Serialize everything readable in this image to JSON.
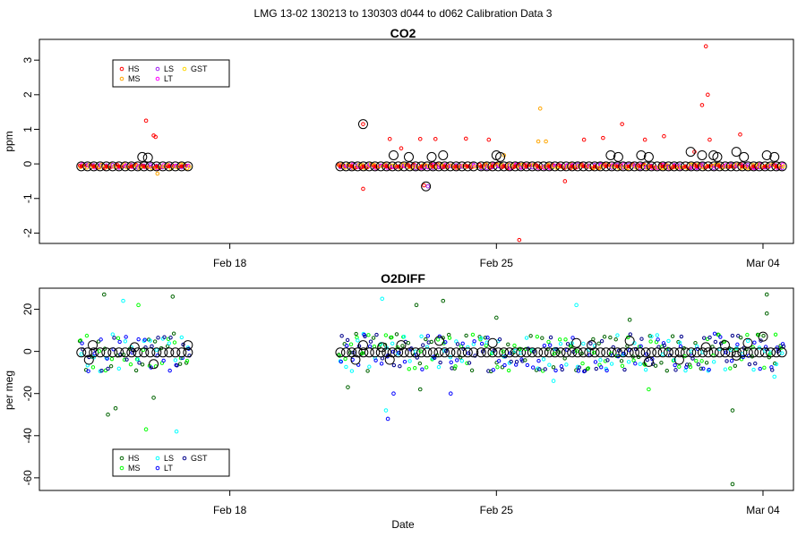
{
  "suptitle": "LMG   13-02    130213 to 130303    d044 to d062   Calibration Data 3",
  "chart_data": [
    {
      "type": "scatter",
      "title": "CO2",
      "ylabel": "ppm",
      "xlabel": "",
      "xlim": [
        44.0,
        63.8
      ],
      "ylim": [
        -2.3,
        3.6
      ],
      "yticks": [
        -2,
        -1,
        0,
        1,
        2,
        3
      ],
      "xticks": [
        {
          "x": 49,
          "label": "Feb 18"
        },
        {
          "x": 56,
          "label": "Feb 25"
        },
        {
          "x": 63,
          "label": "Mar 04"
        }
      ],
      "legend": {
        "position": "top-left",
        "entries": [
          {
            "label": "HS",
            "color": "#ff0000"
          },
          {
            "label": "MS",
            "color": "#ffa500"
          },
          {
            "label": "LS",
            "color": "#a020f0"
          },
          {
            "label": "LT",
            "color": "#ff00ff"
          },
          {
            "label": "GST",
            "color": "#ffd700"
          }
        ]
      },
      "segments": [
        {
          "start": 45.1,
          "end": 47.9,
          "n": 18
        },
        {
          "start": 51.9,
          "end": 55.4,
          "n": 24
        },
        {
          "start": 55.6,
          "end": 63.5,
          "n": 54
        }
      ],
      "baseline": -0.07,
      "series_colors": [
        "#ff0000",
        "#ffa500",
        "#a020f0",
        "#ff00ff",
        "#ffd700"
      ],
      "outliers": [
        {
          "x": 46.8,
          "y": 1.25,
          "color": "#ff0000"
        },
        {
          "x": 47.0,
          "y": 0.82,
          "color": "#ff0000"
        },
        {
          "x": 47.05,
          "y": 0.78,
          "color": "#ff0000"
        },
        {
          "x": 47.1,
          "y": -0.28,
          "color": "#ffa500"
        },
        {
          "x": 52.5,
          "y": 1.15,
          "color": "#ff0000"
        },
        {
          "x": 52.5,
          "y": -0.72,
          "color": "#ff0000"
        },
        {
          "x": 53.2,
          "y": 0.72,
          "color": "#ff0000"
        },
        {
          "x": 53.5,
          "y": 0.45,
          "color": "#ff0000"
        },
        {
          "x": 54.0,
          "y": 0.72,
          "color": "#ff0000"
        },
        {
          "x": 54.1,
          "y": -0.62,
          "color": "#ff0000"
        },
        {
          "x": 54.2,
          "y": -0.65,
          "color": "#a020f0"
        },
        {
          "x": 54.4,
          "y": 0.72,
          "color": "#ff0000"
        },
        {
          "x": 55.2,
          "y": 0.73,
          "color": "#ff0000"
        },
        {
          "x": 55.8,
          "y": 0.7,
          "color": "#ff0000"
        },
        {
          "x": 56.2,
          "y": 0.25,
          "color": "#ffa500"
        },
        {
          "x": 56.6,
          "y": -2.2,
          "color": "#ff0000"
        },
        {
          "x": 57.1,
          "y": 0.65,
          "color": "#ffa500"
        },
        {
          "x": 57.15,
          "y": 1.6,
          "color": "#ffa500"
        },
        {
          "x": 57.3,
          "y": 0.65,
          "color": "#ffa500"
        },
        {
          "x": 57.8,
          "y": -0.5,
          "color": "#ff0000"
        },
        {
          "x": 58.3,
          "y": 0.7,
          "color": "#ff0000"
        },
        {
          "x": 58.8,
          "y": 0.75,
          "color": "#ff0000"
        },
        {
          "x": 59.3,
          "y": 1.15,
          "color": "#ff0000"
        },
        {
          "x": 59.9,
          "y": 0.7,
          "color": "#ff0000"
        },
        {
          "x": 60.4,
          "y": 0.8,
          "color": "#ff0000"
        },
        {
          "x": 61.2,
          "y": 0.35,
          "color": "#ff0000"
        },
        {
          "x": 61.4,
          "y": 1.7,
          "color": "#ff0000"
        },
        {
          "x": 61.5,
          "y": 3.4,
          "color": "#ff0000"
        },
        {
          "x": 61.55,
          "y": 2.0,
          "color": "#ff0000"
        },
        {
          "x": 61.6,
          "y": 0.7,
          "color": "#ff0000"
        },
        {
          "x": 62.4,
          "y": 0.85,
          "color": "#ff0000"
        }
      ],
      "circled": [
        {
          "x": 52.5,
          "y": 1.15
        },
        {
          "x": 53.3,
          "y": 0.25
        },
        {
          "x": 53.7,
          "y": 0.2
        },
        {
          "x": 54.15,
          "y": -0.65
        },
        {
          "x": 54.3,
          "y": 0.2
        },
        {
          "x": 54.6,
          "y": 0.25
        },
        {
          "x": 56.0,
          "y": 0.25
        },
        {
          "x": 56.1,
          "y": 0.2
        },
        {
          "x": 59.0,
          "y": 0.25
        },
        {
          "x": 59.2,
          "y": 0.2
        },
        {
          "x": 59.8,
          "y": 0.25
        },
        {
          "x": 60.0,
          "y": 0.2
        },
        {
          "x": 61.1,
          "y": 0.35
        },
        {
          "x": 61.4,
          "y": 0.25
        },
        {
          "x": 61.7,
          "y": 0.25
        },
        {
          "x": 61.8,
          "y": 0.2
        },
        {
          "x": 62.3,
          "y": 0.35
        },
        {
          "x": 62.5,
          "y": 0.2
        },
        {
          "x": 63.1,
          "y": 0.25
        },
        {
          "x": 63.3,
          "y": 0.2
        },
        {
          "x": 46.7,
          "y": 0.2
        },
        {
          "x": 46.85,
          "y": 0.18
        }
      ]
    },
    {
      "type": "scatter",
      "title": "O2DIFF",
      "ylabel": "per meg",
      "xlabel": "Date",
      "xlim": [
        44.0,
        63.8
      ],
      "ylim": [
        -66,
        30
      ],
      "yticks": [
        -60,
        -40,
        -20,
        0,
        20
      ],
      "xticks": [
        {
          "x": 49,
          "label": "Feb 18"
        },
        {
          "x": 56,
          "label": "Feb 25"
        },
        {
          "x": 63,
          "label": "Mar 04"
        }
      ],
      "legend": {
        "position": "bottom-left",
        "entries": [
          {
            "label": "HS",
            "color": "#006400"
          },
          {
            "label": "MS",
            "color": "#00ff00"
          },
          {
            "label": "LS",
            "color": "#00ffff"
          },
          {
            "label": "LT",
            "color": "#0000ff"
          },
          {
            "label": "GST",
            "color": "#00008b"
          }
        ]
      },
      "segments": [
        {
          "start": 45.1,
          "end": 47.9,
          "n": 18
        },
        {
          "start": 51.9,
          "end": 55.4,
          "n": 24
        },
        {
          "start": 55.6,
          "end": 63.5,
          "n": 54
        }
      ],
      "baseline": -0.5,
      "spread": 9,
      "series_colors": [
        "#006400",
        "#00ff00",
        "#00ffff",
        "#0000ff",
        "#00008b"
      ],
      "outliers": [
        {
          "x": 45.7,
          "y": 27,
          "color": "#006400"
        },
        {
          "x": 45.8,
          "y": -30,
          "color": "#006400"
        },
        {
          "x": 46.0,
          "y": -27,
          "color": "#006400"
        },
        {
          "x": 46.2,
          "y": 24,
          "color": "#00ffff"
        },
        {
          "x": 46.6,
          "y": 22,
          "color": "#00ff00"
        },
        {
          "x": 46.8,
          "y": -37,
          "color": "#00ff00"
        },
        {
          "x": 47.0,
          "y": -22,
          "color": "#006400"
        },
        {
          "x": 47.5,
          "y": 26,
          "color": "#006400"
        },
        {
          "x": 47.6,
          "y": -38,
          "color": "#00ffff"
        },
        {
          "x": 52.1,
          "y": -17,
          "color": "#006400"
        },
        {
          "x": 53.0,
          "y": 25,
          "color": "#00ffff"
        },
        {
          "x": 53.1,
          "y": -28,
          "color": "#00ffff"
        },
        {
          "x": 53.15,
          "y": -32,
          "color": "#0000ff"
        },
        {
          "x": 53.3,
          "y": -20,
          "color": "#0000ff"
        },
        {
          "x": 53.9,
          "y": 22,
          "color": "#006400"
        },
        {
          "x": 54.0,
          "y": -18,
          "color": "#006400"
        },
        {
          "x": 54.6,
          "y": 24,
          "color": "#006400"
        },
        {
          "x": 54.8,
          "y": -20,
          "color": "#0000ff"
        },
        {
          "x": 56.0,
          "y": 16,
          "color": "#006400"
        },
        {
          "x": 57.5,
          "y": -14,
          "color": "#00ffff"
        },
        {
          "x": 58.1,
          "y": 22,
          "color": "#00ffff"
        },
        {
          "x": 59.5,
          "y": 15,
          "color": "#006400"
        },
        {
          "x": 60.0,
          "y": -18,
          "color": "#00ff00"
        },
        {
          "x": 62.2,
          "y": -28,
          "color": "#006400"
        },
        {
          "x": 62.2,
          "y": -63,
          "color": "#006400"
        },
        {
          "x": 63.1,
          "y": 27,
          "color": "#006400"
        },
        {
          "x": 63.1,
          "y": 18,
          "color": "#006400"
        },
        {
          "x": 63.3,
          "y": -12,
          "color": "#00ffff"
        }
      ],
      "circled": [
        {
          "x": 45.3,
          "y": -4
        },
        {
          "x": 45.4,
          "y": 3
        },
        {
          "x": 46.5,
          "y": 2
        },
        {
          "x": 47.0,
          "y": -6
        },
        {
          "x": 47.9,
          "y": 3
        },
        {
          "x": 52.3,
          "y": -4
        },
        {
          "x": 52.5,
          "y": 3
        },
        {
          "x": 53.0,
          "y": 2
        },
        {
          "x": 53.2,
          "y": -4
        },
        {
          "x": 53.5,
          "y": 3
        },
        {
          "x": 54.5,
          "y": 5
        },
        {
          "x": 55.9,
          "y": 4
        },
        {
          "x": 58.1,
          "y": 4
        },
        {
          "x": 58.5,
          "y": 3
        },
        {
          "x": 59.5,
          "y": 5
        },
        {
          "x": 60.0,
          "y": -5
        },
        {
          "x": 60.8,
          "y": -4
        },
        {
          "x": 61.5,
          "y": 2
        },
        {
          "x": 62.0,
          "y": 3
        },
        {
          "x": 62.3,
          "y": -2
        },
        {
          "x": 62.6,
          "y": 4
        },
        {
          "x": 63.0,
          "y": 7
        }
      ]
    }
  ]
}
